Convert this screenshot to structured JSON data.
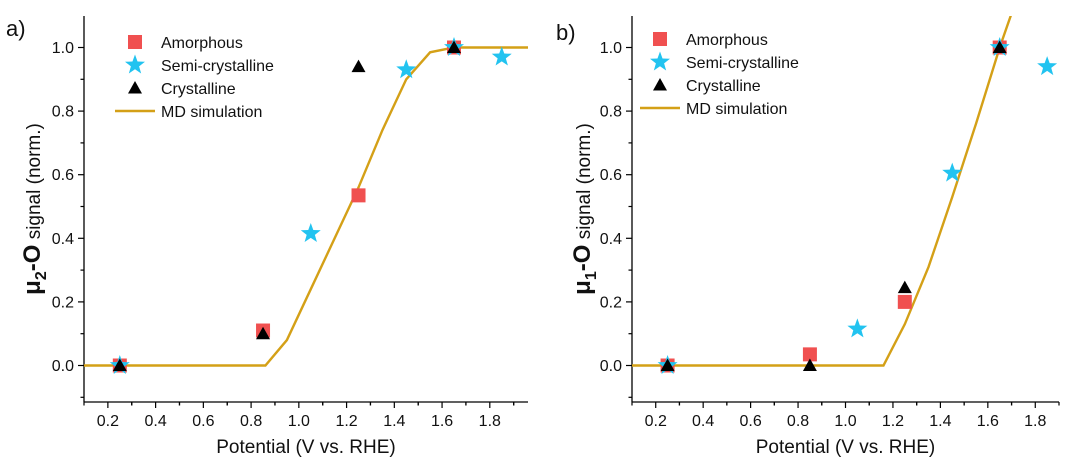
{
  "colors": {
    "amorphous": "#f05050",
    "semi_crystalline": "#22c3f0",
    "crystalline": "#000000",
    "md_simulation": "#d4a017"
  },
  "chart_data": [
    {
      "panel_label": "a)",
      "type": "scatter",
      "xlabel": "Potential (V vs. RHE)",
      "ylabel_main": "μ",
      "ylabel_sub": "2",
      "ylabel_mid": "-O",
      "ylabel_tail": " signal (norm.)",
      "xlim": [
        0.1,
        1.96
      ],
      "ylim": [
        -0.12,
        1.1
      ],
      "x_ticks": [
        "0.2",
        "0.4",
        "0.6",
        "0.8",
        "1.0",
        "1.2",
        "1.4",
        "1.6",
        "1.8"
      ],
      "y_ticks": [
        "0.0",
        "0.2",
        "0.4",
        "0.6",
        "0.8",
        "1.0"
      ],
      "legend": [
        "Amorphous",
        "Semi-crystalline",
        "Crystalline",
        "MD simulation"
      ],
      "series": [
        {
          "name": "Amorphous",
          "marker": "square",
          "color_key": "amorphous",
          "points": [
            [
              0.25,
              0.0
            ],
            [
              0.85,
              0.11
            ],
            [
              1.25,
              0.535
            ],
            [
              1.65,
              1.0
            ]
          ]
        },
        {
          "name": "Semi-crystalline",
          "marker": "star",
          "color_key": "semi_crystalline",
          "points": [
            [
              0.25,
              0.0
            ],
            [
              1.05,
              0.415
            ],
            [
              1.45,
              0.93
            ],
            [
              1.65,
              1.0
            ],
            [
              1.85,
              0.97
            ]
          ]
        },
        {
          "name": "Crystalline",
          "marker": "triangle",
          "color_key": "crystalline",
          "points": [
            [
              0.25,
              0.0
            ],
            [
              0.85,
              0.1
            ],
            [
              1.25,
              0.94
            ],
            [
              1.65,
              1.0
            ]
          ]
        },
        {
          "name": "MD simulation",
          "marker": "line",
          "color_key": "md_simulation",
          "points": [
            [
              0.1,
              0.0
            ],
            [
              0.86,
              0.0
            ],
            [
              0.95,
              0.08
            ],
            [
              1.05,
              0.24
            ],
            [
              1.15,
              0.4
            ],
            [
              1.25,
              0.56
            ],
            [
              1.35,
              0.74
            ],
            [
              1.45,
              0.9
            ],
            [
              1.55,
              0.985
            ],
            [
              1.65,
              1.0
            ],
            [
              1.96,
              1.0
            ]
          ]
        }
      ]
    },
    {
      "panel_label": "b)",
      "type": "scatter",
      "xlabel": "Potential (V vs. RHE)",
      "ylabel_main": "μ",
      "ylabel_sub": "1",
      "ylabel_mid": "-O",
      "ylabel_tail": " signal (norm.)",
      "xlim": [
        0.1,
        1.9
      ],
      "ylim": [
        -0.12,
        1.1
      ],
      "x_ticks": [
        "0.2",
        "0.4",
        "0.6",
        "0.8",
        "1.0",
        "1.2",
        "1.4",
        "1.6",
        "1.8"
      ],
      "y_ticks": [
        "0.0",
        "0.2",
        "0.4",
        "0.6",
        "0.8",
        "1.0"
      ],
      "legend": [
        "Amorphous",
        "Semi-crystalline",
        "Crystalline",
        "MD simulation"
      ],
      "series": [
        {
          "name": "Amorphous",
          "marker": "square",
          "color_key": "amorphous",
          "points": [
            [
              0.25,
              0.0
            ],
            [
              0.85,
              0.035
            ],
            [
              1.25,
              0.2
            ],
            [
              1.65,
              1.0
            ]
          ]
        },
        {
          "name": "Semi-crystalline",
          "marker": "star",
          "color_key": "semi_crystalline",
          "points": [
            [
              0.25,
              0.0
            ],
            [
              1.05,
              0.115
            ],
            [
              1.45,
              0.605
            ],
            [
              1.65,
              1.0
            ],
            [
              1.85,
              0.94
            ]
          ]
        },
        {
          "name": "Crystalline",
          "marker": "triangle",
          "color_key": "crystalline",
          "points": [
            [
              0.25,
              0.0
            ],
            [
              0.85,
              0.0
            ],
            [
              1.25,
              0.245
            ],
            [
              1.65,
              1.0
            ]
          ]
        },
        {
          "name": "MD simulation",
          "marker": "line",
          "color_key": "md_simulation",
          "points": [
            [
              0.1,
              0.0
            ],
            [
              1.16,
              0.0
            ],
            [
              1.25,
              0.13
            ],
            [
              1.35,
              0.31
            ],
            [
              1.45,
              0.53
            ],
            [
              1.55,
              0.76
            ],
            [
              1.65,
              1.0
            ],
            [
              1.72,
              1.15
            ]
          ]
        }
      ]
    }
  ]
}
